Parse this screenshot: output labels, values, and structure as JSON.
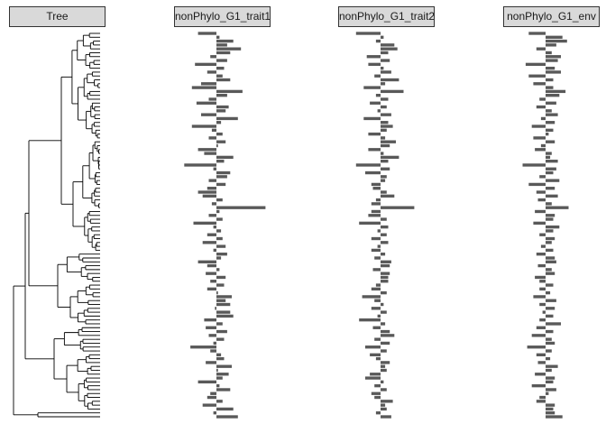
{
  "colors": {
    "strip_bg": "#d9d9d9",
    "strip_border": "#333333",
    "bar": "#595959",
    "tree": "#000000"
  },
  "chart_data": {
    "type": "bar",
    "orientation": "horizontal",
    "n_tips": 100,
    "panels": [
      {
        "title": "Tree",
        "kind": "phylogeny"
      },
      {
        "title": "nonPhylo_G1_trait1",
        "kind": "bar",
        "values": [
          -0.6,
          0.1,
          0.55,
          0.35,
          0.8,
          0.45,
          -0.2,
          0.35,
          -0.7,
          0.25,
          -0.3,
          0.2,
          0.45,
          -0.5,
          -0.8,
          0.85,
          0.35,
          -0.25,
          -0.65,
          0.4,
          0.3,
          -0.5,
          0.7,
          0.15,
          -0.8,
          -0.15,
          0.2,
          -0.25,
          0.3,
          0.05,
          -0.6,
          -0.4,
          0.55,
          0.25,
          -1.05,
          -0.1,
          0.45,
          0.35,
          -0.25,
          0.3,
          -0.3,
          -0.6,
          -0.45,
          0.2,
          -0.15,
          1.6,
          0.1,
          -0.25,
          0.2,
          -0.75,
          -0.1,
          0.15,
          -0.3,
          0.2,
          -0.45,
          0.3,
          -0.1,
          0.35,
          0.15,
          -0.6,
          -0.3,
          0.1,
          -0.35,
          0.3,
          -0.2,
          0.25,
          -0.3,
          0.05,
          0.5,
          0.3,
          0.45,
          -0.05,
          0.45,
          0.55,
          -0.4,
          0.2,
          -0.35,
          0.35,
          -0.25,
          0.25,
          -0.1,
          -0.85,
          -0.2,
          0.15,
          0.25,
          -0.35,
          0.5,
          0.05,
          0.4,
          0.2,
          -0.6,
          0.1,
          0.45,
          -0.2,
          -0.3,
          0.2,
          -0.45,
          0.55,
          -0.1,
          0.7
        ]
      },
      {
        "title": "nonPhylo_G1_trait2",
        "kind": "bar",
        "values": [
          -0.8,
          0.1,
          -0.15,
          0.45,
          0.55,
          0.25,
          -0.45,
          0.3,
          -0.4,
          0.1,
          0.35,
          -0.2,
          0.6,
          0.15,
          -0.55,
          0.75,
          -0.15,
          0.25,
          -0.35,
          0.2,
          -0.1,
          0.35,
          -0.55,
          0.25,
          0.4,
          0.2,
          -0.4,
          0.15,
          0.5,
          0.3,
          -0.4,
          0.1,
          0.6,
          0.25,
          -0.8,
          0.3,
          -0.5,
          0.2,
          0.15,
          -0.3,
          -0.25,
          0.2,
          0.45,
          -0.15,
          -0.3,
          1.1,
          -0.3,
          -0.4,
          0.2,
          -0.7,
          0.25,
          -0.1,
          0.2,
          -0.3,
          0.25,
          -0.1,
          -0.3,
          0.15,
          -0.2,
          0.35,
          0.3,
          -0.25,
          0.3,
          0.25,
          0.25,
          -0.15,
          -0.3,
          0.2,
          -0.6,
          -0.2,
          0.1,
          -0.3,
          0.2,
          -0.1,
          -0.7,
          0.15,
          -0.25,
          0.3,
          0.45,
          -0.2,
          0.3,
          -0.5,
          0.2,
          -0.35,
          -0.15,
          0.3,
          0.15,
          0.2,
          -0.35,
          -0.5,
          0.1,
          -0.2,
          0.2,
          -0.3,
          -0.2,
          0.4,
          0.15,
          0.2,
          -0.15,
          0.35
        ]
      },
      {
        "title": "nonPhylo_G1_env",
        "kind": "bar",
        "values": [
          -0.55,
          0.55,
          0.7,
          0.35,
          -0.3,
          0.2,
          0.5,
          0.4,
          -0.65,
          0.3,
          0.5,
          -0.55,
          0.25,
          -0.4,
          0.25,
          0.65,
          0.45,
          -0.2,
          0.35,
          -0.3,
          0.2,
          0.4,
          -0.15,
          0.3,
          -0.45,
          0.25,
          0.1,
          -0.4,
          0.3,
          -0.15,
          -0.35,
          0.2,
          0.15,
          0.4,
          -0.75,
          0.35,
          0.25,
          -0.2,
          0.45,
          -0.55,
          0.3,
          -0.3,
          0.4,
          -0.25,
          0.2,
          0.75,
          -0.35,
          0.3,
          0.25,
          -0.4,
          0.45,
          0.25,
          -0.2,
          0.3,
          0.2,
          -0.15,
          0.25,
          -0.3,
          0.3,
          0.35,
          -0.25,
          0.2,
          0.3,
          -0.35,
          -0.2,
          0.25,
          -0.2,
          0.15,
          -0.4,
          0.35,
          -0.2,
          0.3,
          -0.1,
          0.25,
          -0.2,
          0.5,
          -0.3,
          0.25,
          -0.45,
          0.2,
          0.3,
          -0.6,
          0.2,
          -0.3,
          0.15,
          -0.25,
          0.4,
          0.2,
          -0.35,
          0.3,
          0.25,
          -0.45,
          0.35,
          0.1,
          -0.2,
          -0.3,
          0.3,
          0.25,
          0.3,
          0.55
        ]
      }
    ],
    "grid": false,
    "legend": "none"
  }
}
